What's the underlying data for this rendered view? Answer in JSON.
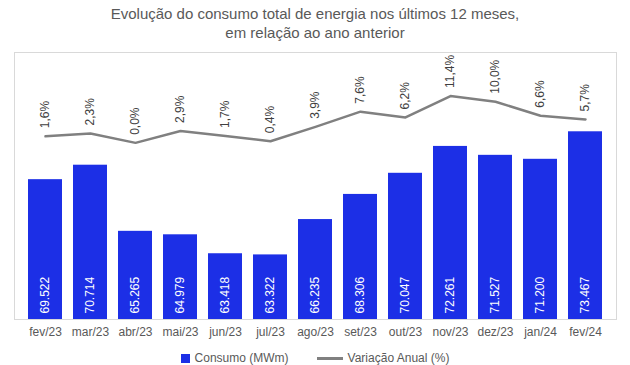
{
  "chart_data": {
    "type": "bar",
    "title": "Evolução do consumo total de energia nos últimos 12 meses, em relação ao ano anterior",
    "categories": [
      "fev/23",
      "mar/23",
      "abr/23",
      "mai/23",
      "jun/23",
      "jul/23",
      "ago/23",
      "set/23",
      "out/23",
      "nov/23",
      "dez/23",
      "jan/24",
      "fev/24"
    ],
    "series": [
      {
        "name": "Consumo (MWm)",
        "type": "bar",
        "color": "#1c2fe6",
        "values": [
          69522,
          70714,
          65265,
          64979,
          63418,
          63322,
          66235,
          68306,
          70047,
          72261,
          71527,
          71200,
          73467
        ],
        "value_labels": [
          "69.522",
          "70.714",
          "65.265",
          "64.979",
          "63.418",
          "63.322",
          "66.235",
          "68.306",
          "70.047",
          "72.261",
          "71.527",
          "71.200",
          "73.467"
        ]
      },
      {
        "name": "Variação Anual (%)",
        "type": "line",
        "axis": "y2",
        "color": "#808080",
        "values": [
          1.6,
          2.3,
          0.0,
          2.9,
          1.7,
          0.4,
          3.9,
          7.6,
          6.2,
          11.4,
          10.0,
          6.6,
          5.7
        ],
        "value_labels": [
          "1,6%",
          "2,3%",
          "0,0%",
          "2,9%",
          "1,7%",
          "0,4%",
          "3,9%",
          "7,6%",
          "6,2%",
          "11,4%",
          "10,0%",
          "6,6%",
          "5,7%"
        ]
      }
    ],
    "ylim": [
      58000,
      80000
    ],
    "y2lim": [
      -43,
      22
    ],
    "data_labels": true,
    "tick_labels": "x",
    "legend": "bottom",
    "grid": false
  }
}
